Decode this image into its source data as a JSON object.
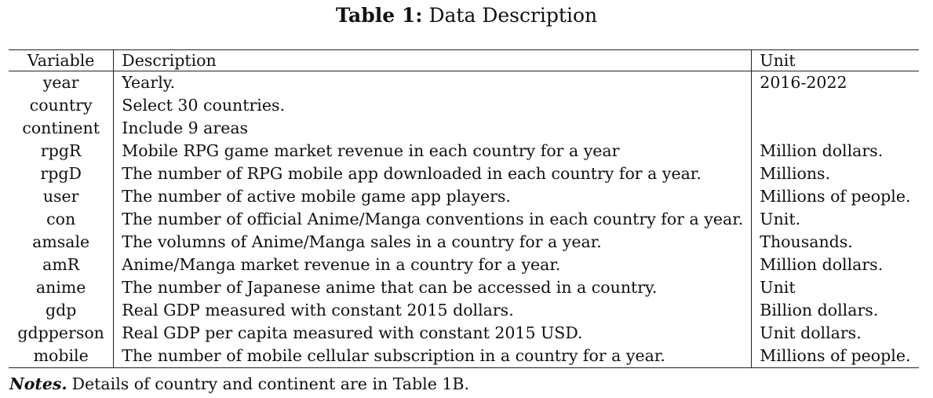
{
  "caption": {
    "label": "Table 1:",
    "title": "Data Description"
  },
  "table": {
    "headers": {
      "variable": "Variable",
      "description": "Description",
      "unit": "Unit"
    },
    "rows": [
      {
        "variable": "year",
        "description": "Yearly.",
        "unit": "2016-2022"
      },
      {
        "variable": "country",
        "description": "Select 30 countries.",
        "unit": ""
      },
      {
        "variable": "continent",
        "description": "Include 9 areas",
        "unit": ""
      },
      {
        "variable": "rpgR",
        "description": "Mobile RPG game market revenue in each country for a year",
        "unit": "Million dollars."
      },
      {
        "variable": "rpgD",
        "description": "The number of RPG mobile app downloaded in each country for a year.",
        "unit": "Millions."
      },
      {
        "variable": "user",
        "description": "The number of active mobile game app players.",
        "unit": "Millions of people."
      },
      {
        "variable": "con",
        "description": "The number of official Anime/Manga conventions in each country for a year.",
        "unit": "Unit."
      },
      {
        "variable": "amsale",
        "description": "The volumns of Anime/Manga sales in a country for a year.",
        "unit": "Thousands."
      },
      {
        "variable": "amR",
        "description": "Anime/Manga market revenue in a country for a year.",
        "unit": "Million dollars."
      },
      {
        "variable": "anime",
        "description": "The number of Japanese anime that can be accessed in a country.",
        "unit": "Unit"
      },
      {
        "variable": "gdp",
        "description": "Real GDP measured with constant 2015 dollars.",
        "unit": "Billion dollars."
      },
      {
        "variable": "gdpperson",
        "description": "Real GDP per capita measured with constant 2015 USD.",
        "unit": "Unit dollars."
      },
      {
        "variable": "mobile",
        "description": "The number of mobile cellular subscription in a country for a year.",
        "unit": "Millions of people."
      }
    ]
  },
  "notes": {
    "label": "Notes.",
    "text": "Details of country and continent are in Table 1B."
  }
}
